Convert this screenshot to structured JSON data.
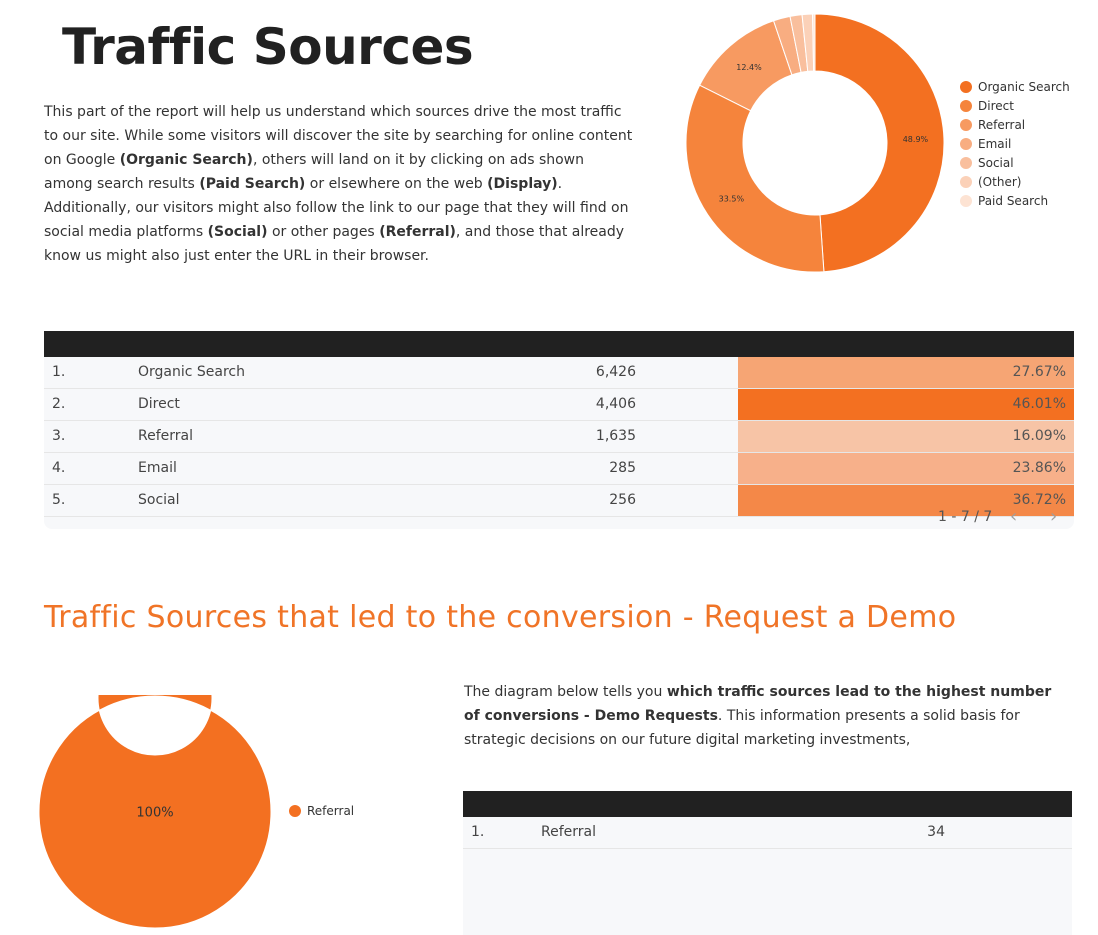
{
  "header": {
    "title": "Traffic Sources"
  },
  "intro": {
    "p1": "This part of the report will help us understand which sources drive the most traffic to our site. While some visitors will discover the site by searching for online content on Google ",
    "b1": "(Organic Search)",
    "p2": ", others will land on it by clicking on ads shown among search results ",
    "b2": "(Paid Search)",
    "p3": " or elsewhere on the web ",
    "b3": "(Display)",
    "p4": ". Additionally, our visitors might also follow the link to our page that they will find on social media platforms ",
    "b4": "(Social)",
    "p5": " or other pages ",
    "b5": "(Referral)",
    "p6": ", and those that already know us might also just enter the URL in their browser."
  },
  "chart_data": [
    {
      "type": "pie",
      "categories": [
        "Organic Search",
        "Direct",
        "Referral",
        "Email",
        "Social",
        "(Other)",
        "Paid Search"
      ],
      "values": [
        48.9,
        33.5,
        12.4,
        2.1,
        1.5,
        1.3,
        0.3
      ],
      "labels": [
        "48.9%",
        "33.5%",
        "12.4%",
        "",
        "",
        "",
        ""
      ],
      "colors": [
        "#f37021",
        "#f5843c",
        "#f79a61",
        "#f8ad81",
        "#f9bf9d",
        "#fbd1b8",
        "#fde3d3"
      ],
      "donut": true,
      "legend": "right"
    },
    {
      "type": "pie",
      "categories": [
        "Referral"
      ],
      "values": [
        100
      ],
      "labels": [
        "100%"
      ],
      "colors": [
        "#f37021"
      ],
      "donut": true,
      "legend": "right"
    },
    {
      "type": "table",
      "rows": [
        {
          "idx": "1.",
          "name": "Organic Search",
          "value": "6,426",
          "pct": "27.67%",
          "color": "#f6a574"
        },
        {
          "idx": "2.",
          "name": "Direct",
          "value": "4,406",
          "pct": "46.01%",
          "color": "#f37021"
        },
        {
          "idx": "3.",
          "name": "Referral",
          "value": "1,635",
          "pct": "16.09%",
          "color": "#f7c4a6"
        },
        {
          "idx": "4.",
          "name": "Email",
          "value": "285",
          "pct": "23.86%",
          "color": "#f7b08a"
        },
        {
          "idx": "5.",
          "name": "Social",
          "value": "256",
          "pct": "36.72%",
          "color": "#f48848"
        }
      ],
      "pagination": "1 - 7 / 7"
    },
    {
      "type": "table",
      "rows": [
        {
          "idx": "1.",
          "name": "Referral",
          "value": "34"
        }
      ]
    }
  ],
  "conversion": {
    "title": "Traffic Sources that led to the conversion - Request a Demo",
    "desc_p1": "The diagram below tells you ",
    "desc_b1": "which traffic sources lead to the highest number of conversions - Demo Requests",
    "desc_p2": ". This information presents a solid basis for strategic decisions on our future digital marketing investments,"
  },
  "icons": {
    "prev": "chevron-left-icon",
    "next": "chevron-right-icon"
  }
}
